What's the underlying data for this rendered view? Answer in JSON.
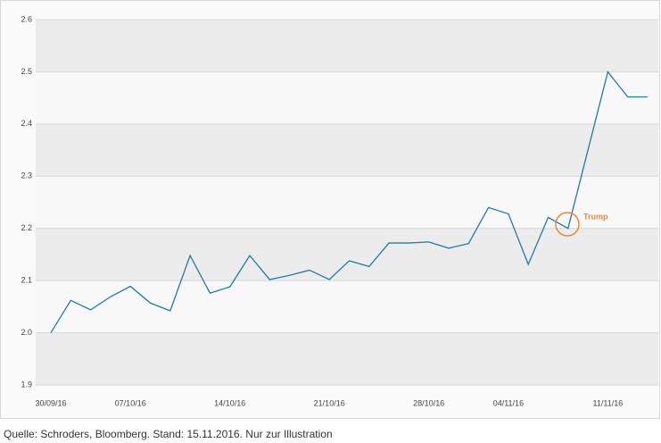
{
  "chart_data": {
    "type": "line",
    "categories": [
      "30/09/16",
      null,
      null,
      null,
      "07/10/16",
      null,
      null,
      null,
      null,
      "14/10/16",
      null,
      null,
      null,
      null,
      "21/10/16",
      null,
      null,
      null,
      null,
      "28/10/16",
      null,
      null,
      null,
      "04/11/16",
      null,
      null,
      null,
      null,
      "11/11/16",
      null,
      null
    ],
    "series": [
      {
        "color": "#1f7ba8",
        "values": [
          2.0,
          2.062,
          2.044,
          2.069,
          2.089,
          2.057,
          2.042,
          2.148,
          2.076,
          2.088,
          2.148,
          2.102,
          2.11,
          2.12,
          2.102,
          2.138,
          2.127,
          2.172,
          2.172,
          2.174,
          2.162,
          2.171,
          2.24,
          2.228,
          2.131,
          2.221,
          2.2,
          2.35,
          2.5,
          2.452,
          2.452
        ]
      }
    ],
    "ylim": [
      1.9,
      2.6
    ],
    "yticks": [
      1.9,
      {
        "value": 2.0,
        "label": "2.0"
      },
      2.1,
      2.2,
      2.3,
      2.4,
      2.5,
      2.6
    ],
    "grid": true,
    "annotation": "Trump",
    "source": "Quelle: Schroders, Bloomberg. Stand: 15.11.2016. Nur zur Illustration"
  }
}
